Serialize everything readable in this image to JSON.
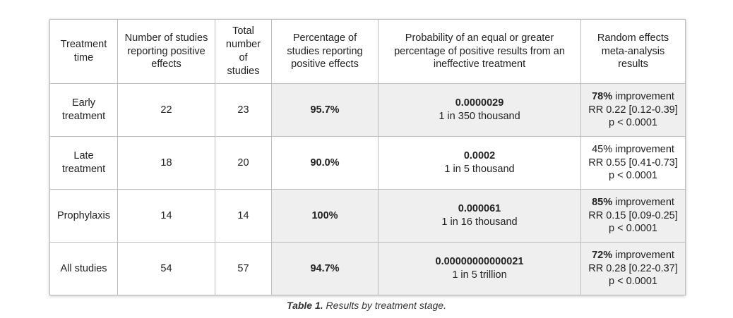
{
  "table": {
    "headers": [
      "Treatment time",
      "Number of studies reporting positive effects",
      "Total number of studies",
      "Percentage of studies reporting positive effects",
      "Probability of an equal or greater percentage of positive results from an ineffective treatment",
      "Random effects meta-analysis results"
    ],
    "rows": [
      {
        "time": "Early treatment",
        "positive": "22",
        "total": "23",
        "pct": "95.7%",
        "prob": "0.0000029",
        "odds": "1 in 350 thousand",
        "improvement_pct": "78%",
        "improvement_word": " improvement",
        "rr": "RR 0.22 [0.12-0.39]",
        "p": "p < 0.0001"
      },
      {
        "time": "Late treatment",
        "positive": "18",
        "total": "20",
        "pct": "90.0%",
        "prob": "0.0002",
        "odds": "1 in 5 thousand",
        "improvement_pct": "45%",
        "improvement_word": " improvement",
        "rr": "RR 0.55 [0.41-0.73]",
        "p": "p < 0.0001"
      },
      {
        "time": "Prophylaxis",
        "positive": "14",
        "total": "14",
        "pct": "100%",
        "prob": "0.000061",
        "odds": "1 in 16 thousand",
        "improvement_pct": "85%",
        "improvement_word": " improvement",
        "rr": "RR 0.15 [0.09-0.25]",
        "p": "p < 0.0001"
      },
      {
        "time": "All studies",
        "positive": "54",
        "total": "57",
        "pct": "94.7%",
        "prob": "0.00000000000021",
        "odds": "1 in 5 trillion",
        "improvement_pct": "72%",
        "improvement_word": " improvement",
        "rr": "RR 0.28 [0.22-0.37]",
        "p": "p < 0.0001"
      }
    ]
  },
  "caption": {
    "label": "Table 1.",
    "text": " Results by treatment stage."
  }
}
